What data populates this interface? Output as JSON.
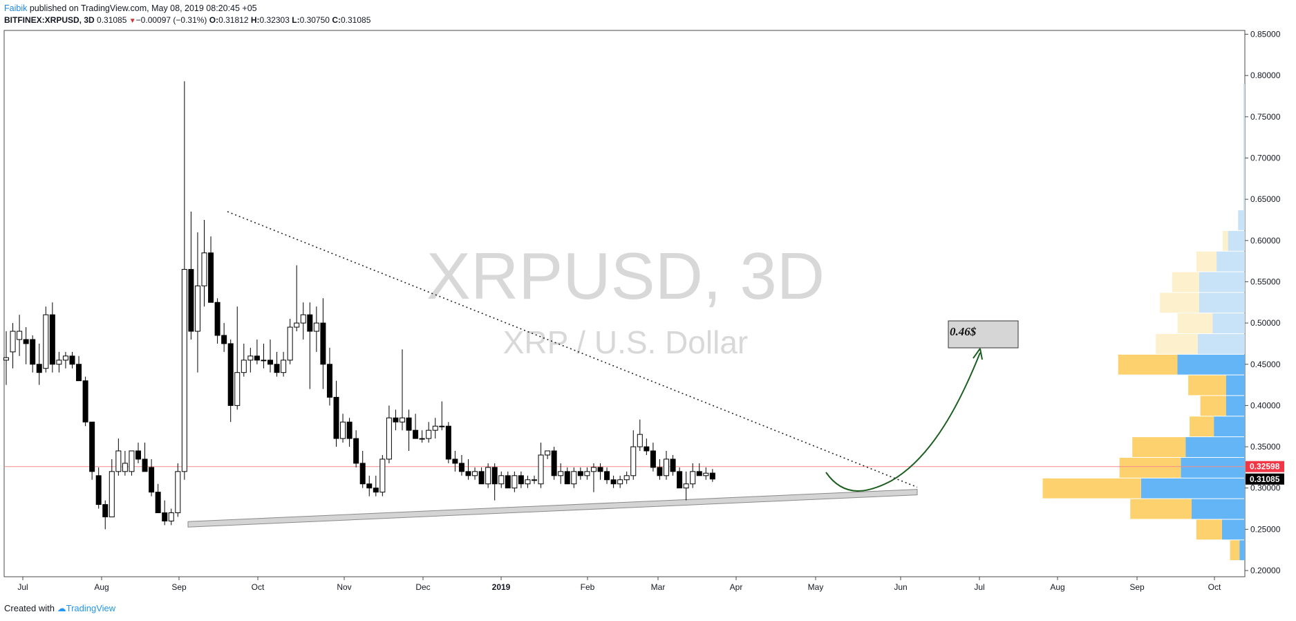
{
  "header": {
    "author": "Faibik",
    "published": " published on TradingView.com, May 08, 2019 08:20:45 +05",
    "symbol": "BITFINEX:XRPUSD, 3D",
    "price": "0.31085",
    "arrow": "▼",
    "change": "−0.00097 (−0.31%)",
    "o_label": "O:",
    "o_val": "0.31812",
    "h_label": "H:",
    "h_val": "0.32303",
    "l_label": "L:",
    "l_val": "0.30750",
    "c_label": "C:",
    "c_val": "0.31085"
  },
  "footer": {
    "created": "Created with",
    "brand": "TradingView"
  },
  "watermark": {
    "line1": "XRPUSD, 3D",
    "line2": "XRP / U.S. Dollar"
  },
  "annotation": {
    "target": "0.46$"
  },
  "colors": {
    "up": "#ffffff",
    "down": "#000000",
    "wick": "#000000",
    "vp_up": "#64b5f6",
    "vp_down": "#fdd26e",
    "vp_up_light": "#c8e2f8",
    "vp_down_light": "#fdf0cc",
    "hline": "#f28b8b",
    "tag_red": "#f23645",
    "tag_black": "#000000",
    "arrow": "#1b5e20",
    "support_fill": "#d4d4d4",
    "support_stroke": "#8a8a8a"
  },
  "chart_data": {
    "type": "candlestick",
    "symbol": "BITFINEX:XRPUSD",
    "interval": "3D",
    "y_scale": [
      0.2,
      0.85
    ],
    "y_ticks": [
      "0.85000",
      "0.80000",
      "0.75000",
      "0.70000",
      "0.65000",
      "0.60000",
      "0.55000",
      "0.50000",
      "0.45000",
      "0.40000",
      "0.35000",
      "0.30000",
      "0.25000",
      "0.20000"
    ],
    "x_ticks": [
      "Jul",
      "Aug",
      "Sep",
      "Oct",
      "Nov",
      "Dec",
      "2019",
      "Feb",
      "Mar",
      "Apr",
      "May",
      "Jun",
      "Jul",
      "Aug",
      "Sep",
      "Oct"
    ],
    "price_labels": {
      "hline": "0.32598",
      "last": "0.31085"
    },
    "horizontal_line": 0.32598,
    "candles": [
      {
        "o": 0.455,
        "h": 0.49,
        "l": 0.425,
        "c": 0.458
      },
      {
        "o": 0.465,
        "h": 0.5,
        "l": 0.445,
        "c": 0.49
      },
      {
        "o": 0.48,
        "h": 0.51,
        "l": 0.46,
        "c": 0.49
      },
      {
        "o": 0.48,
        "h": 0.495,
        "l": 0.45,
        "c": 0.475
      },
      {
        "o": 0.48,
        "h": 0.485,
        "l": 0.44,
        "c": 0.45
      },
      {
        "o": 0.45,
        "h": 0.475,
        "l": 0.425,
        "c": 0.44
      },
      {
        "o": 0.445,
        "h": 0.52,
        "l": 0.44,
        "c": 0.51
      },
      {
        "o": 0.51,
        "h": 0.525,
        "l": 0.44,
        "c": 0.45
      },
      {
        "o": 0.45,
        "h": 0.465,
        "l": 0.44,
        "c": 0.455
      },
      {
        "o": 0.455,
        "h": 0.465,
        "l": 0.445,
        "c": 0.46
      },
      {
        "o": 0.46,
        "h": 0.465,
        "l": 0.445,
        "c": 0.45
      },
      {
        "o": 0.45,
        "h": 0.46,
        "l": 0.43,
        "c": 0.43
      },
      {
        "o": 0.43,
        "h": 0.435,
        "l": 0.375,
        "c": 0.38
      },
      {
        "o": 0.38,
        "h": 0.38,
        "l": 0.31,
        "c": 0.32
      },
      {
        "o": 0.315,
        "h": 0.325,
        "l": 0.275,
        "c": 0.28
      },
      {
        "o": 0.28,
        "h": 0.285,
        "l": 0.25,
        "c": 0.265
      },
      {
        "o": 0.265,
        "h": 0.335,
        "l": 0.265,
        "c": 0.32
      },
      {
        "o": 0.32,
        "h": 0.36,
        "l": 0.315,
        "c": 0.345
      },
      {
        "o": 0.32,
        "h": 0.345,
        "l": 0.315,
        "c": 0.33
      },
      {
        "o": 0.32,
        "h": 0.345,
        "l": 0.315,
        "c": 0.345
      },
      {
        "o": 0.345,
        "h": 0.355,
        "l": 0.33,
        "c": 0.335
      },
      {
        "o": 0.335,
        "h": 0.355,
        "l": 0.32,
        "c": 0.32
      },
      {
        "o": 0.325,
        "h": 0.335,
        "l": 0.29,
        "c": 0.295
      },
      {
        "o": 0.295,
        "h": 0.305,
        "l": 0.27,
        "c": 0.27
      },
      {
        "o": 0.27,
        "h": 0.285,
        "l": 0.255,
        "c": 0.26
      },
      {
        "o": 0.26,
        "h": 0.275,
        "l": 0.255,
        "c": 0.27
      },
      {
        "o": 0.27,
        "h": 0.33,
        "l": 0.265,
        "c": 0.32
      },
      {
        "o": 0.32,
        "h": 0.793,
        "l": 0.31,
        "c": 0.565
      },
      {
        "o": 0.565,
        "h": 0.635,
        "l": 0.48,
        "c": 0.49
      },
      {
        "o": 0.49,
        "h": 0.61,
        "l": 0.44,
        "c": 0.545
      },
      {
        "o": 0.545,
        "h": 0.625,
        "l": 0.52,
        "c": 0.585
      },
      {
        "o": 0.585,
        "h": 0.605,
        "l": 0.525,
        "c": 0.525
      },
      {
        "o": 0.525,
        "h": 0.53,
        "l": 0.475,
        "c": 0.485
      },
      {
        "o": 0.485,
        "h": 0.5,
        "l": 0.465,
        "c": 0.475
      },
      {
        "o": 0.475,
        "h": 0.48,
        "l": 0.38,
        "c": 0.4
      },
      {
        "o": 0.4,
        "h": 0.52,
        "l": 0.395,
        "c": 0.44
      },
      {
        "o": 0.44,
        "h": 0.475,
        "l": 0.435,
        "c": 0.455
      },
      {
        "o": 0.455,
        "h": 0.47,
        "l": 0.44,
        "c": 0.46
      },
      {
        "o": 0.46,
        "h": 0.48,
        "l": 0.45,
        "c": 0.455
      },
      {
        "o": 0.455,
        "h": 0.475,
        "l": 0.445,
        "c": 0.455
      },
      {
        "o": 0.455,
        "h": 0.48,
        "l": 0.44,
        "c": 0.45
      },
      {
        "o": 0.45,
        "h": 0.465,
        "l": 0.435,
        "c": 0.44
      },
      {
        "o": 0.44,
        "h": 0.465,
        "l": 0.435,
        "c": 0.455
      },
      {
        "o": 0.455,
        "h": 0.505,
        "l": 0.45,
        "c": 0.495
      },
      {
        "o": 0.495,
        "h": 0.57,
        "l": 0.49,
        "c": 0.5
      },
      {
        "o": 0.5,
        "h": 0.525,
        "l": 0.48,
        "c": 0.51
      },
      {
        "o": 0.51,
        "h": 0.525,
        "l": 0.42,
        "c": 0.49
      },
      {
        "o": 0.49,
        "h": 0.52,
        "l": 0.465,
        "c": 0.5
      },
      {
        "o": 0.5,
        "h": 0.53,
        "l": 0.42,
        "c": 0.45
      },
      {
        "o": 0.45,
        "h": 0.47,
        "l": 0.4,
        "c": 0.41
      },
      {
        "o": 0.41,
        "h": 0.43,
        "l": 0.35,
        "c": 0.36
      },
      {
        "o": 0.36,
        "h": 0.39,
        "l": 0.355,
        "c": 0.38
      },
      {
        "o": 0.38,
        "h": 0.385,
        "l": 0.35,
        "c": 0.36
      },
      {
        "o": 0.36,
        "h": 0.37,
        "l": 0.325,
        "c": 0.33
      },
      {
        "o": 0.33,
        "h": 0.345,
        "l": 0.3,
        "c": 0.305
      },
      {
        "o": 0.305,
        "h": 0.315,
        "l": 0.29,
        "c": 0.3
      },
      {
        "o": 0.3,
        "h": 0.315,
        "l": 0.29,
        "c": 0.295
      },
      {
        "o": 0.295,
        "h": 0.34,
        "l": 0.29,
        "c": 0.335
      },
      {
        "o": 0.335,
        "h": 0.4,
        "l": 0.33,
        "c": 0.385
      },
      {
        "o": 0.385,
        "h": 0.395,
        "l": 0.37,
        "c": 0.38
      },
      {
        "o": 0.38,
        "h": 0.468,
        "l": 0.37,
        "c": 0.385
      },
      {
        "o": 0.385,
        "h": 0.395,
        "l": 0.345,
        "c": 0.37
      },
      {
        "o": 0.37,
        "h": 0.39,
        "l": 0.36,
        "c": 0.36
      },
      {
        "o": 0.36,
        "h": 0.37,
        "l": 0.355,
        "c": 0.36
      },
      {
        "o": 0.36,
        "h": 0.38,
        "l": 0.355,
        "c": 0.37
      },
      {
        "o": 0.37,
        "h": 0.385,
        "l": 0.36,
        "c": 0.375
      },
      {
        "o": 0.375,
        "h": 0.405,
        "l": 0.37,
        "c": 0.375
      },
      {
        "o": 0.375,
        "h": 0.38,
        "l": 0.33,
        "c": 0.335
      },
      {
        "o": 0.335,
        "h": 0.345,
        "l": 0.32,
        "c": 0.33
      },
      {
        "o": 0.33,
        "h": 0.34,
        "l": 0.315,
        "c": 0.32
      },
      {
        "o": 0.32,
        "h": 0.335,
        "l": 0.31,
        "c": 0.315
      },
      {
        "o": 0.315,
        "h": 0.325,
        "l": 0.31,
        "c": 0.32
      },
      {
        "o": 0.32,
        "h": 0.325,
        "l": 0.305,
        "c": 0.305
      },
      {
        "o": 0.305,
        "h": 0.33,
        "l": 0.3,
        "c": 0.325
      },
      {
        "o": 0.325,
        "h": 0.33,
        "l": 0.285,
        "c": 0.305
      },
      {
        "o": 0.305,
        "h": 0.32,
        "l": 0.3,
        "c": 0.315
      },
      {
        "o": 0.315,
        "h": 0.32,
        "l": 0.3,
        "c": 0.3
      },
      {
        "o": 0.3,
        "h": 0.32,
        "l": 0.295,
        "c": 0.315
      },
      {
        "o": 0.315,
        "h": 0.32,
        "l": 0.3,
        "c": 0.305
      },
      {
        "o": 0.305,
        "h": 0.315,
        "l": 0.3,
        "c": 0.31
      },
      {
        "o": 0.31,
        "h": 0.315,
        "l": 0.305,
        "c": 0.31
      },
      {
        "o": 0.305,
        "h": 0.355,
        "l": 0.3,
        "c": 0.34
      },
      {
        "o": 0.34,
        "h": 0.345,
        "l": 0.335,
        "c": 0.345
      },
      {
        "o": 0.345,
        "h": 0.35,
        "l": 0.31,
        "c": 0.315
      },
      {
        "o": 0.315,
        "h": 0.33,
        "l": 0.305,
        "c": 0.32
      },
      {
        "o": 0.32,
        "h": 0.325,
        "l": 0.305,
        "c": 0.305
      },
      {
        "o": 0.305,
        "h": 0.325,
        "l": 0.3,
        "c": 0.32
      },
      {
        "o": 0.32,
        "h": 0.325,
        "l": 0.31,
        "c": 0.315
      },
      {
        "o": 0.315,
        "h": 0.325,
        "l": 0.31,
        "c": 0.32
      },
      {
        "o": 0.32,
        "h": 0.33,
        "l": 0.295,
        "c": 0.325
      },
      {
        "o": 0.325,
        "h": 0.33,
        "l": 0.31,
        "c": 0.32
      },
      {
        "o": 0.32,
        "h": 0.325,
        "l": 0.305,
        "c": 0.31
      },
      {
        "o": 0.31,
        "h": 0.315,
        "l": 0.3,
        "c": 0.305
      },
      {
        "o": 0.305,
        "h": 0.315,
        "l": 0.3,
        "c": 0.31
      },
      {
        "o": 0.31,
        "h": 0.32,
        "l": 0.305,
        "c": 0.315
      },
      {
        "o": 0.315,
        "h": 0.37,
        "l": 0.31,
        "c": 0.35
      },
      {
        "o": 0.35,
        "h": 0.383,
        "l": 0.345,
        "c": 0.365
      },
      {
        "o": 0.35,
        "h": 0.36,
        "l": 0.34,
        "c": 0.345
      },
      {
        "o": 0.345,
        "h": 0.355,
        "l": 0.32,
        "c": 0.325
      },
      {
        "o": 0.325,
        "h": 0.335,
        "l": 0.31,
        "c": 0.315
      },
      {
        "o": 0.315,
        "h": 0.345,
        "l": 0.31,
        "c": 0.335
      },
      {
        "o": 0.335,
        "h": 0.34,
        "l": 0.315,
        "c": 0.32
      },
      {
        "o": 0.32,
        "h": 0.325,
        "l": 0.3,
        "c": 0.3
      },
      {
        "o": 0.3,
        "h": 0.32,
        "l": 0.285,
        "c": 0.305
      },
      {
        "o": 0.305,
        "h": 0.33,
        "l": 0.3,
        "c": 0.32
      },
      {
        "o": 0.32,
        "h": 0.33,
        "l": 0.315,
        "c": 0.315
      },
      {
        "o": 0.315,
        "h": 0.325,
        "l": 0.31,
        "c": 0.318
      },
      {
        "o": 0.31812,
        "h": 0.32303,
        "l": 0.3075,
        "c": 0.31085
      }
    ],
    "volume_profile": [
      {
        "p": 0.625,
        "up": 10,
        "down": 0
      },
      {
        "p": 0.6,
        "up": 25,
        "down": 8
      },
      {
        "p": 0.575,
        "up": 42,
        "down": 30
      },
      {
        "p": 0.55,
        "up": 68,
        "down": 40
      },
      {
        "p": 0.525,
        "up": 68,
        "down": 58
      },
      {
        "p": 0.5,
        "up": 48,
        "down": 52
      },
      {
        "p": 0.475,
        "up": 70,
        "down": 62
      },
      {
        "p": 0.45,
        "up": 100,
        "down": 88
      },
      {
        "p": 0.425,
        "up": 28,
        "down": 56
      },
      {
        "p": 0.4,
        "up": 28,
        "down": 38
      },
      {
        "p": 0.375,
        "up": 46,
        "down": 36
      },
      {
        "p": 0.35,
        "up": 88,
        "down": 79
      },
      {
        "p": 0.325,
        "up": 95,
        "down": 91
      },
      {
        "p": 0.3,
        "up": 154,
        "down": 146
      },
      {
        "p": 0.275,
        "up": 79,
        "down": 91
      },
      {
        "p": 0.25,
        "up": 34,
        "down": 38
      },
      {
        "p": 0.225,
        "up": 8,
        "down": 14
      }
    ],
    "trendlines": {
      "resistance": [
        [
          0.635,
          0.301
        ]
      ],
      "support": [
        [
          0.256,
          0.295
        ]
      ]
    },
    "target": 0.46
  }
}
